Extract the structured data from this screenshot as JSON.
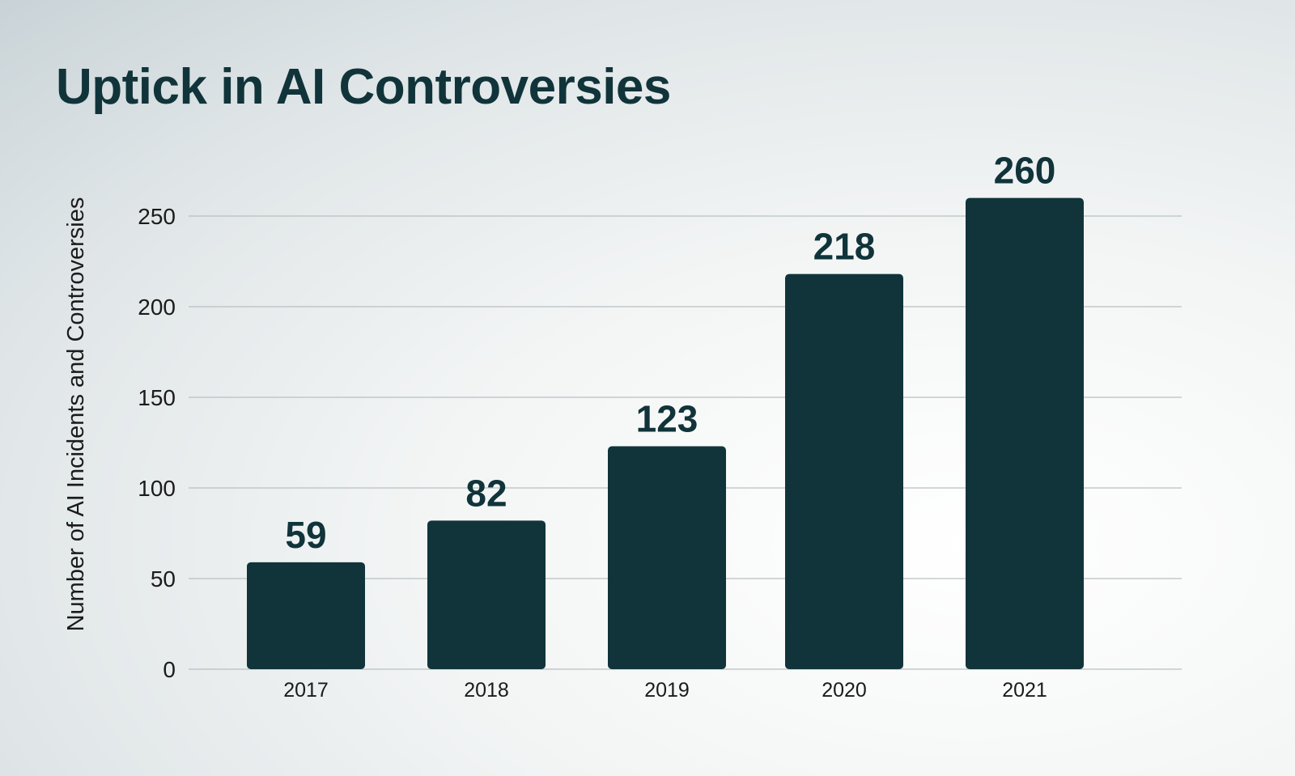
{
  "chart_data": {
    "type": "bar",
    "title": "Uptick in AI Controversies",
    "xlabel": "",
    "ylabel": "Number of AI Incidents and Controversies",
    "categories": [
      "2017",
      "2018",
      "2019",
      "2020",
      "2021"
    ],
    "values": [
      59,
      82,
      123,
      218,
      260
    ],
    "ylim": [
      0,
      250
    ],
    "yticks": [
      0,
      50,
      100,
      150,
      200,
      250
    ],
    "grid": true,
    "data_labels": true,
    "colors": {
      "bar": "#10343a",
      "text": "#10343a",
      "grid": "#b9c0c2"
    }
  }
}
